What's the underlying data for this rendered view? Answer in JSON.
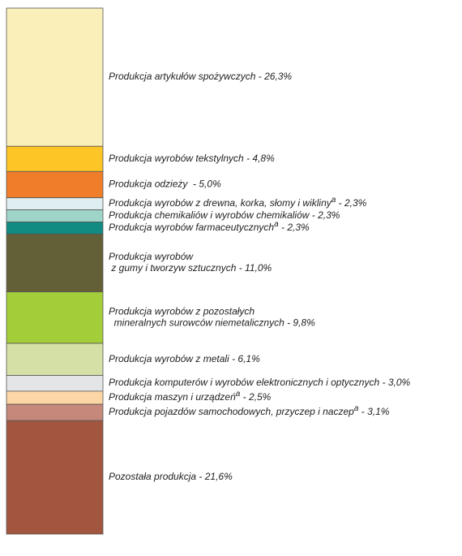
{
  "chart_data": {
    "type": "stacked-column",
    "categories": [
      "Produkcja artykułów spożywczych",
      "Produkcja wyrobów tekstylnych",
      "Produkcja odzieży ",
      "Produkcja wyrobów z drewna, korka, słomy i wikliny",
      "Produkcja chemikaliów i wyrobów chemikaliów",
      "Produkcja wyrobów farmaceutycznych",
      "Produkcja wyrobów\n z gumy i tworzyw sztucznych",
      "Produkcja wyrobów z pozostałych\n  mineralnych surowców niemetalicznych",
      "Produkcja wyrobów z metali",
      "Produkcja komputerów i wyrobów elektronicznych i optycznych",
      "Produkcja maszyn i urządzeń",
      "Produkcja pojazdów samochodowych, przyczep i naczep",
      "Pozostała produkcja"
    ],
    "footnotes": [
      null,
      null,
      null,
      "a",
      null,
      "a",
      null,
      null,
      null,
      null,
      "a",
      "a",
      null
    ],
    "label_separator": " - ",
    "values": [
      26.3,
      4.8,
      5.0,
      2.3,
      2.3,
      2.3,
      11.0,
      9.8,
      6.1,
      3.0,
      2.5,
      3.1,
      21.6
    ],
    "value_labels": [
      "26,3%",
      "4,8%",
      "5,0%",
      "2,3%",
      "2,3%",
      "2,3%",
      "11,0%",
      "9,8%",
      "6,1%",
      "3,0%",
      "2,5%",
      "3,1%",
      "21,6%"
    ],
    "colors": [
      "#fbefb9",
      "#fdc526",
      "#f07d2a",
      "#dfeef0",
      "#9fd4c9",
      "#128b82",
      "#636038",
      "#a3cd39",
      "#d5e0a6",
      "#e4e5e6",
      "#fdd6a5",
      "#c5887a",
      "#a25640"
    ]
  }
}
